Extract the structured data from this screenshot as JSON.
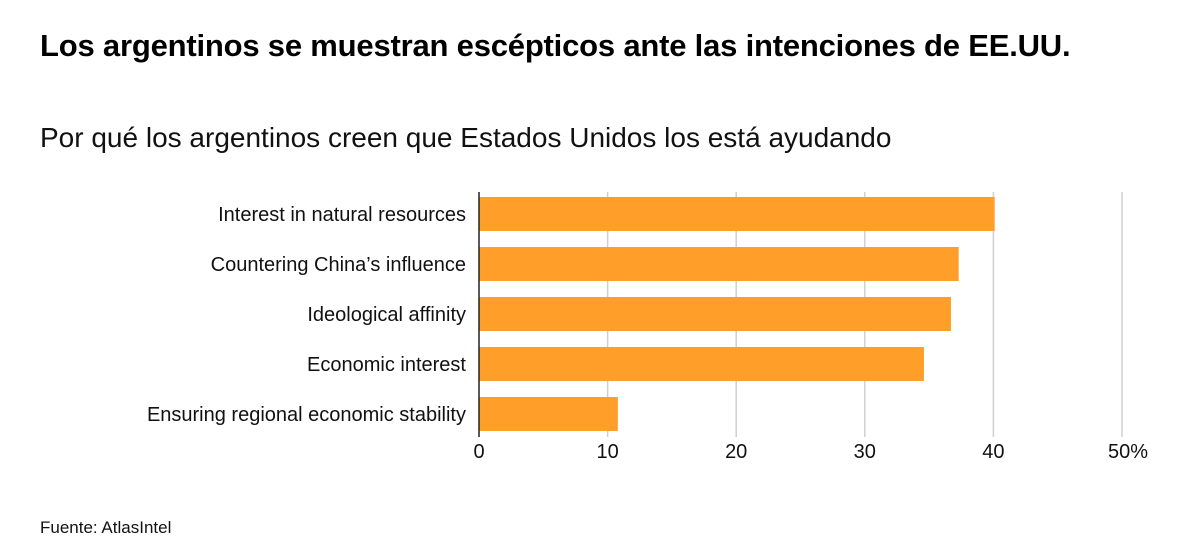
{
  "title": "Los argentinos se muestran escépticos ante las intenciones de EE.UU.",
  "subtitle": "Por qué los argentinos creen que Estados Unidos los está ayudando",
  "source": "Fuente: AtlasIntel",
  "chart_data": {
    "type": "bar",
    "orientation": "horizontal",
    "categories": [
      "Interest in natural resources",
      "Countering China’s influence",
      "Ideological affinity",
      "Economic interest",
      "Ensuring regional economic stability"
    ],
    "values": [
      40.1,
      37.3,
      36.7,
      34.6,
      10.8
    ],
    "xlim": [
      0,
      50
    ],
    "xticks": [
      0,
      10,
      20,
      30,
      40,
      50
    ],
    "xtick_labels": [
      "0",
      "10",
      "20",
      "30",
      "40",
      "50%"
    ],
    "grid": true,
    "bar_color": "#ff9f2a"
  }
}
